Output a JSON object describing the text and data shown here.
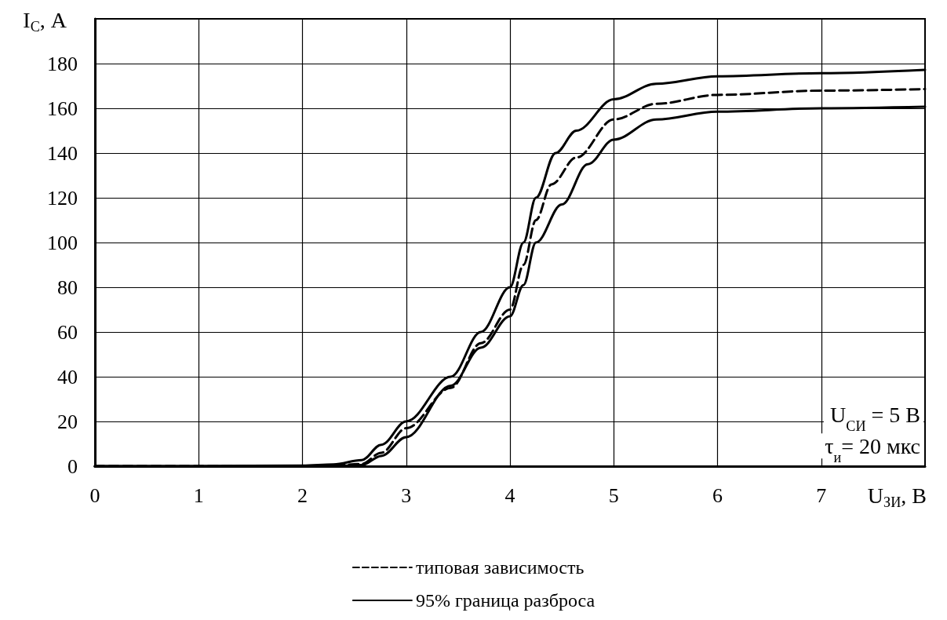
{
  "chart_data": {
    "type": "line",
    "xlabel": "U$_{ЗИ}$, В",
    "ylabel": "I$_{С}$, А",
    "xlim": [
      0,
      8
    ],
    "xticks": [
      0,
      1,
      2,
      3,
      4,
      5,
      6,
      7
    ],
    "ylim": [
      0,
      200
    ],
    "yticks": [
      0,
      20,
      40,
      60,
      80,
      100,
      120,
      140,
      160,
      180
    ],
    "grid": true,
    "legend": "bottom",
    "marker": "none",
    "annotations": [
      "U$_{СИ}$ = 5 В",
      "τ$_{и}$= 20 мкс"
    ],
    "series": [
      {
        "name": "типовая зависимость",
        "color": "#000000",
        "line_style": "dashed",
        "x": [
          0,
          1,
          2,
          2.3,
          2.57,
          2.76,
          3,
          3.43,
          3.72,
          4,
          4.13,
          4.25,
          4.4,
          4.64,
          5,
          5.41,
          6,
          7,
          8
        ],
        "values": [
          0,
          0,
          0.1,
          0.3,
          1,
          6,
          17,
          35,
          55,
          70,
          90,
          110,
          126,
          138,
          155,
          162,
          166,
          167.9,
          168.6
        ]
      },
      {
        "name": "95% граница разброса",
        "color": "#000000",
        "line_style": "solid",
        "x": [
          0,
          1,
          2,
          2.3,
          2.57,
          2.76,
          3,
          3.43,
          3.72,
          4,
          4.13,
          4.25,
          4.44,
          4.64,
          5,
          5.41,
          6,
          7,
          8
        ],
        "values": [
          0,
          0,
          0.3,
          0.8,
          2.7,
          9.6,
          20,
          40,
          60,
          80,
          100,
          120,
          140,
          150,
          164,
          171,
          174.3,
          175.7,
          177.2
        ]
      },
      {
        "color": "#000000",
        "line_style": "solid",
        "x": [
          0,
          1,
          2,
          2.3,
          2.57,
          2.76,
          3,
          3.43,
          3.72,
          4,
          4.13,
          4.25,
          4.5,
          4.75,
          5,
          5.41,
          6,
          7,
          8
        ],
        "values": [
          0,
          0,
          0,
          0.1,
          0.5,
          4.6,
          13,
          36,
          53,
          67,
          81,
          100,
          117,
          135,
          146,
          155,
          158.5,
          160,
          160.7
        ]
      }
    ]
  }
}
